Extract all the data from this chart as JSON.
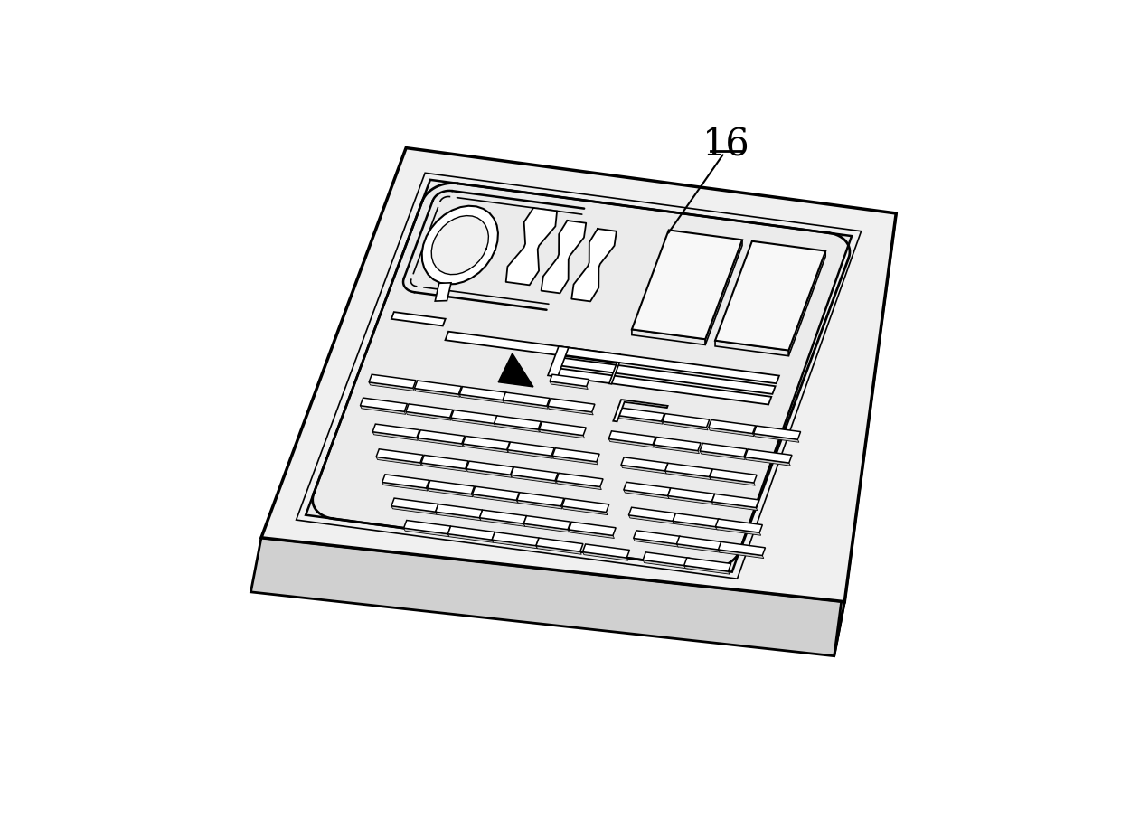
{
  "bg_color": "#ffffff",
  "label_16": "16",
  "chip_face_color": "#f0f0f0",
  "chip_side_bottom_color": "#d0d0d0",
  "chip_side_right_color": "#e0e0e0",
  "inner_face_color": "#ebebeb",
  "groove_color": "#e8e8e8",
  "slot_face_color": "#ffffff",
  "slot_shadow_color": "#d0d0d0",
  "block_face_color": "#e8e8e8",
  "block_top_color": "#f8f8f8"
}
